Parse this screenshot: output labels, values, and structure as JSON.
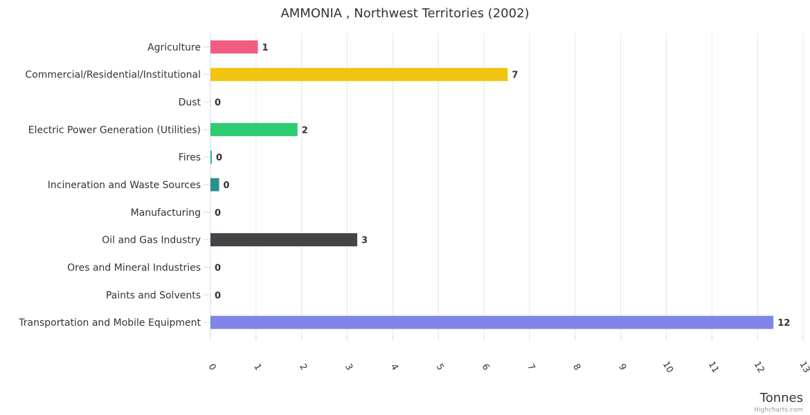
{
  "chart_data": {
    "type": "bar",
    "orientation": "horizontal",
    "title": "AMMONIA , Northwest Territories (2002)",
    "xlabel": "Tonnes",
    "categories": [
      "Agriculture",
      "Commercial/Residential/Institutional",
      "Dust",
      "Electric Power Generation (Utilities)",
      "Fires",
      "Incineration and Waste Sources",
      "Manufacturing",
      "Oil and Gas Industry",
      "Ores and Mineral Industries",
      "Paints and Solvents",
      "Transportation and Mobile Equipment"
    ],
    "values": [
      1.04,
      6.52,
      0,
      1.91,
      0.03,
      0.19,
      0,
      3.22,
      0,
      0,
      12.35
    ],
    "data_labels": [
      "1",
      "7",
      "0",
      "2",
      "0",
      "0",
      "0",
      "3",
      "0",
      "0",
      "12"
    ],
    "colors": [
      "#f15c80",
      "#f1c40f",
      "#e74c3c",
      "#2ecc71",
      "#1abc9c",
      "#2a9090",
      "#7cb5ec",
      "#434348",
      "#90ed7d",
      "#8085e9",
      "#8085e9"
    ],
    "xlim": [
      0,
      13
    ],
    "ticks": [
      0,
      1,
      2,
      3,
      4,
      5,
      6,
      7,
      8,
      9,
      10,
      11,
      12,
      13
    ],
    "grid": true,
    "legend": "none",
    "credits": "Highcharts.com"
  }
}
